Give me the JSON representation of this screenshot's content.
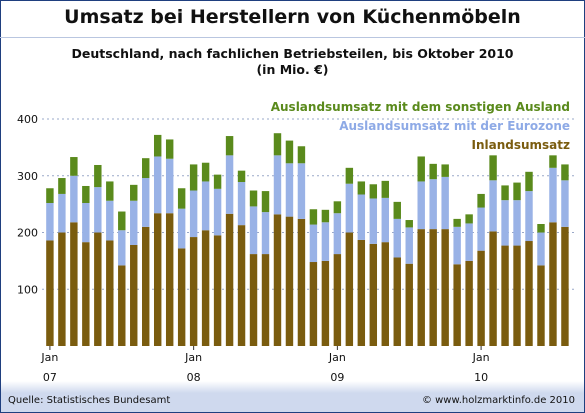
{
  "chart_data": {
    "type": "bar",
    "stacked": true,
    "title": "Umsatz bei Herstellern von Küchenmöbeln",
    "subtitle_line1": "Deutschland, nach fachlichen Betriebsteilen, bis Oktober 2010",
    "subtitle_line2": "(in Mio. €)",
    "ylim": [
      0,
      430
    ],
    "yticks": [
      100,
      200,
      300,
      400
    ],
    "grid": true,
    "legend_position": "top-right",
    "x_tick_labels": [
      {
        "index": 0,
        "month": "Jan",
        "year": "07"
      },
      {
        "index": 12,
        "month": "Jan",
        "year": "08"
      },
      {
        "index": 24,
        "month": "Jan",
        "year": "09"
      },
      {
        "index": 36,
        "month": "Jan",
        "year": "10"
      }
    ],
    "series": [
      {
        "name": "Inlandsumsatz",
        "color": "#7a5c0f",
        "values": [
          186,
          200,
          218,
          183,
          200,
          186,
          142,
          178,
          210,
          234,
          234,
          172,
          192,
          204,
          195,
          233,
          213,
          162,
          162,
          232,
          228,
          224,
          148,
          150,
          162,
          200,
          187,
          180,
          183,
          156,
          145,
          206,
          206,
          206,
          144,
          150,
          168,
          202,
          177,
          177,
          185,
          142,
          218,
          210
        ]
      },
      {
        "name": "Auslandsumsatz mit der Eurozone",
        "color": "#99b2e6",
        "values": [
          66,
          68,
          82,
          69,
          80,
          70,
          62,
          78,
          86,
          100,
          96,
          70,
          82,
          86,
          82,
          103,
          76,
          84,
          74,
          104,
          94,
          98,
          66,
          68,
          72,
          86,
          80,
          80,
          78,
          68,
          64,
          84,
          88,
          92,
          66,
          66,
          76,
          90,
          80,
          80,
          88,
          58,
          96,
          82
        ]
      },
      {
        "name": "Auslandsumsatz mit dem sonstigen Ausland",
        "color": "#5a8a1c",
        "values": [
          26,
          28,
          33,
          30,
          39,
          34,
          33,
          28,
          35,
          38,
          34,
          36,
          46,
          33,
          25,
          34,
          20,
          28,
          37,
          39,
          40,
          30,
          27,
          22,
          21,
          28,
          23,
          25,
          30,
          30,
          13,
          44,
          27,
          22,
          14,
          16,
          24,
          44,
          26,
          31,
          34,
          15,
          22,
          28
        ]
      }
    ]
  },
  "footer": {
    "source": "Quelle: Statistisches Bundesamt",
    "copyright": "© www.holzmarktinfo.de 2010"
  }
}
